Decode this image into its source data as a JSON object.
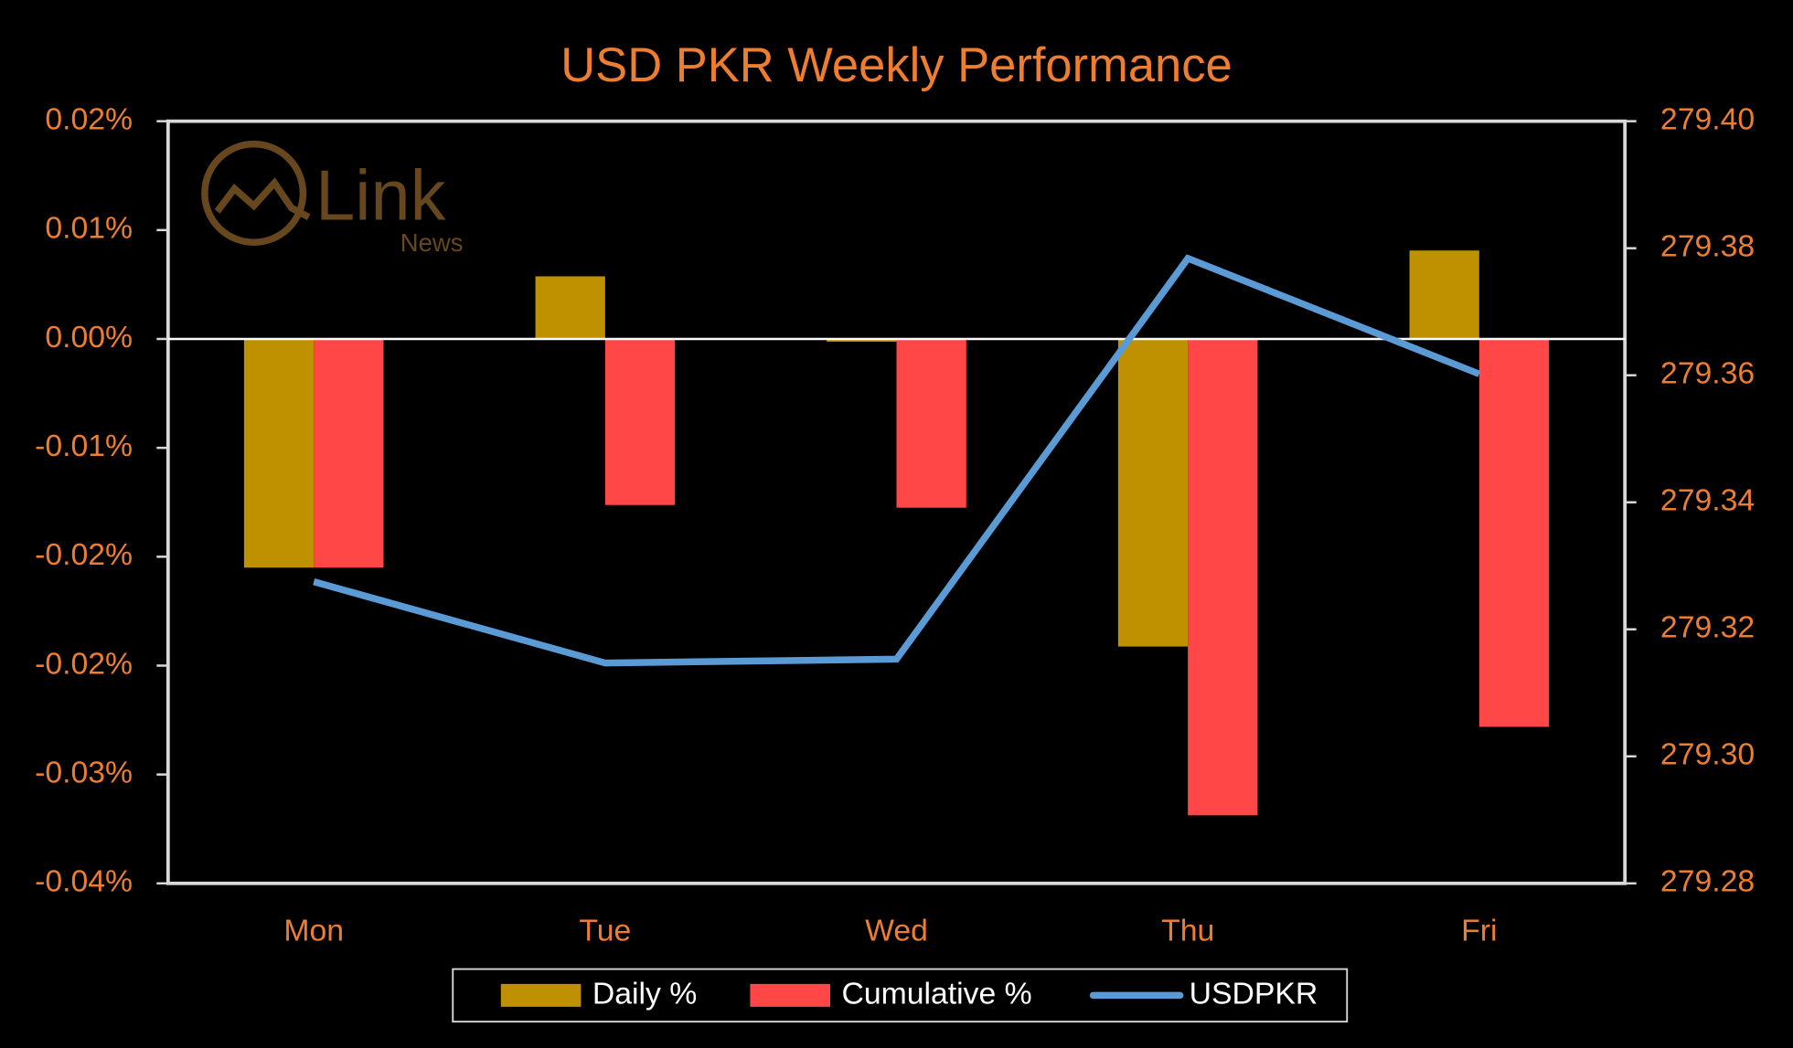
{
  "chart_data": {
    "type": "bar_line",
    "title": "USD PKR Weekly Performance",
    "logo": {
      "text": "Link",
      "subtext": "News"
    },
    "categories": [
      "Mon",
      "Tue",
      "Wed",
      "Thu",
      "Fri"
    ],
    "series": [
      {
        "name": "Daily %",
        "type": "bar",
        "color": "#bf9000",
        "values": [
          -0.0168,
          0.0046,
          -0.0002,
          -0.0226,
          0.0065
        ]
      },
      {
        "name": "Cumulative %",
        "type": "bar",
        "color": "#ff4747",
        "values": [
          -0.0168,
          -0.0122,
          -0.0124,
          -0.035,
          -0.0285
        ]
      },
      {
        "name": "USDPKR",
        "type": "line",
        "axis": "y2",
        "color": "#5b9bd5",
        "values": [
          279.3275,
          279.3147,
          279.3153,
          279.3784,
          279.3602
        ]
      }
    ],
    "ylim": [
      -0.04,
      0.016
    ],
    "yticks": [
      {
        "value": 0.016,
        "label": "0.02%"
      },
      {
        "value": 0.008,
        "label": "0.01%"
      },
      {
        "value": 0,
        "label": "0.00%"
      },
      {
        "value": -0.008,
        "label": "-0.01%"
      },
      {
        "value": -0.016,
        "label": "-0.02%"
      },
      {
        "value": -0.024,
        "label": "-0.02%"
      },
      {
        "value": -0.032,
        "label": "-0.03%"
      },
      {
        "value": -0.04,
        "label": "-0.04%"
      }
    ],
    "y2lim": [
      279.28,
      279.4
    ],
    "y2ticks": [
      279.28,
      {
        "value": 279.3,
        "label": "279.30"
      },
      279.32,
      279.34,
      279.36,
      279.38,
      {
        "value": 279.4,
        "label": "279.40"
      }
    ],
    "legend": "bottom"
  }
}
